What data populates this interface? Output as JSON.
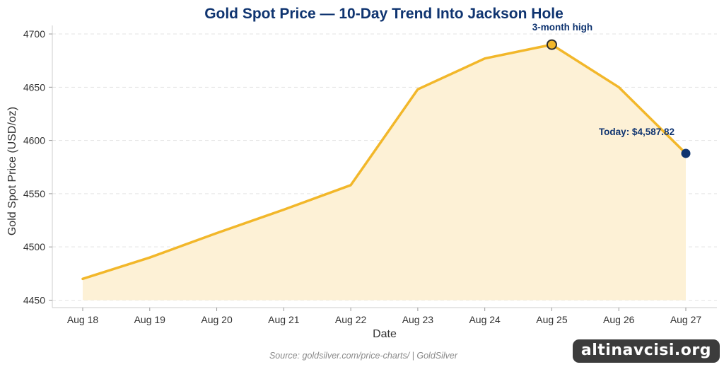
{
  "chart_data": {
    "type": "area",
    "title": "Gold Spot Price — 10-Day Trend Into Jackson Hole",
    "xlabel": "Date",
    "ylabel": "Gold Spot Price (USD/oz)",
    "categories": [
      "Aug 18",
      "Aug 19",
      "Aug 20",
      "Aug 21",
      "Aug 22",
      "Aug 23",
      "Aug 24",
      "Aug 25",
      "Aug 26",
      "Aug 27"
    ],
    "values": [
      4470,
      4490,
      4513,
      4535,
      4558,
      4648,
      4677,
      4690,
      4650,
      4587.82
    ],
    "ylim": [
      4443,
      4708
    ],
    "yticks": [
      4450,
      4500,
      4550,
      4600,
      4650,
      4700
    ],
    "grid": "horizontal-dashed",
    "line_color": "#f2b72a",
    "fill_color": "#fdf1d6",
    "highlight_color": "#0f3470",
    "annotations": [
      {
        "category": "Aug 25",
        "text": "3-month high"
      },
      {
        "category": "Aug 27",
        "text": "Today: $4,587.82"
      }
    ],
    "source": "Source: goldsilver.com/price-charts/ | GoldSilver"
  },
  "watermark": "altinavcisi.org"
}
